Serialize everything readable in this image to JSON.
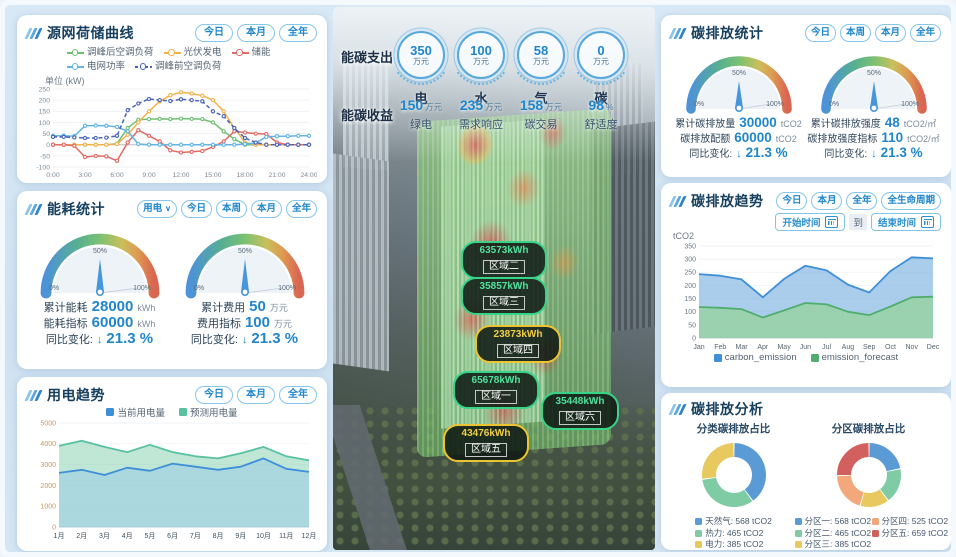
{
  "theme": {
    "accent": "#2f86cd",
    "number_blue": "#1f86cc",
    "panel_bg": "#ffffff",
    "badge_green": "#37d488",
    "badge_yellow": "#ecc432"
  },
  "left": {
    "source_grid": {
      "title": "源网荷储曲线",
      "filters": [
        "今日",
        "本月",
        "全年"
      ],
      "unit": "单位 (kW)"
    },
    "energy_stats": {
      "title": "能耗统计",
      "type_select": "用电",
      "filters": [
        "今日",
        "本周",
        "本月",
        "全年"
      ],
      "gauges": [
        {
          "rows": [
            {
              "label": "累计能耗",
              "value": "28000",
              "unit": "kWh"
            },
            {
              "label": "能耗指标",
              "value": "60000",
              "unit": "kWh"
            }
          ],
          "yoy_label": "同比变化:",
          "yoy_value": "21.3 %"
        },
        {
          "rows": [
            {
              "label": "累计费用",
              "value": "50",
              "unit": "万元"
            },
            {
              "label": "费用指标",
              "value": "100",
              "unit": "万元"
            }
          ],
          "yoy_label": "同比变化:",
          "yoy_value": "21.3 %"
        }
      ]
    },
    "electricity_trend": {
      "title": "用电趋势",
      "filters": [
        "今日",
        "本月",
        "全年"
      ]
    }
  },
  "center": {
    "expense_label": "能碳支出",
    "income_label": "能碳收益",
    "expense_items": [
      {
        "value": "350",
        "unit": "万元",
        "name": "电"
      },
      {
        "value": "100",
        "unit": "万元",
        "name": "水"
      },
      {
        "value": "58",
        "unit": "万元",
        "name": "气"
      },
      {
        "value": "0",
        "unit": "万元",
        "name": "碳"
      }
    ],
    "income_items": [
      {
        "value": "150",
        "unit": "万元",
        "name": "绿电"
      },
      {
        "value": "235",
        "unit": "万元",
        "name": "需求响应"
      },
      {
        "value": "158",
        "unit": "万元",
        "name": "碳交易"
      },
      {
        "value": "98",
        "unit": "%",
        "name": "舒适度"
      }
    ],
    "zone_badges": [
      {
        "value": "63573kWh",
        "name": "区域二"
      },
      {
        "value": "35857kWh",
        "name": "区域三"
      },
      {
        "value": "23873kWh",
        "name": "区域四"
      },
      {
        "value": "65678kWh",
        "name": "区域一"
      },
      {
        "value": "35448kWh",
        "name": "区域六"
      },
      {
        "value": "43476kWh",
        "name": "区域五"
      }
    ]
  },
  "right": {
    "carbon_stats": {
      "title": "碳排放统计",
      "filters": [
        "今日",
        "本周",
        "本月",
        "全年"
      ],
      "gauges": [
        {
          "rows": [
            {
              "label": "累计碳排放量",
              "value": "30000",
              "unit": "tCO2"
            },
            {
              "label": "碳排放配额",
              "value": "60000",
              "unit": "tCO2"
            }
          ],
          "yoy_label": "同比变化:",
          "yoy_value": "21.3 %"
        },
        {
          "rows": [
            {
              "label": "累计碳排放强度",
              "value": "48",
              "unit": "tCO2/㎡"
            },
            {
              "label": "碳排放强度指标",
              "value": "110",
              "unit": "tCO2/㎡"
            }
          ],
          "yoy_label": "同比变化:",
          "yoy_value": "21.3 %"
        }
      ]
    },
    "carbon_trend": {
      "title": "碳排放趋势",
      "filters": [
        "今日",
        "本月",
        "全年",
        "全生命周期"
      ],
      "date_start_placeholder": "开始时间",
      "date_to": "到",
      "date_end_placeholder": "结束时间"
    },
    "carbon_analysis": {
      "title": "碳排放分析",
      "donut_titles": [
        "分类碳排放占比",
        "分区碳排放占比"
      ]
    }
  },
  "chart_data": [
    {
      "id": "source_grid_curve",
      "type": "line",
      "title": "源网荷储曲线",
      "ylabel": "kW",
      "ylim": [
        -100,
        250
      ],
      "yticks": [
        250,
        200,
        150,
        100,
        50,
        0,
        -50,
        -100
      ],
      "xticks": [
        "0:00",
        "3:00",
        "6:00",
        "9:00",
        "12:00",
        "15:00",
        "18:00",
        "21:00",
        "24:00"
      ],
      "series": [
        {
          "name": "调峰后空调负荷",
          "color": "#6fbf73",
          "values": [
            0,
            0,
            0,
            0,
            0,
            0,
            5,
            75,
            112,
            115,
            116,
            115,
            117,
            116,
            115,
            100,
            60,
            25,
            0,
            0,
            0,
            0,
            0,
            0,
            0
          ]
        },
        {
          "name": "光伏发电",
          "color": "#f3b24c",
          "values": [
            0,
            0,
            0,
            0,
            0,
            0,
            3,
            45,
            100,
            150,
            195,
            222,
            235,
            230,
            220,
            200,
            150,
            75,
            10,
            0,
            0,
            0,
            0,
            0,
            0
          ]
        },
        {
          "name": "储能",
          "color": "#e36a64",
          "values": [
            0,
            0,
            -5,
            -55,
            -50,
            -52,
            -72,
            10,
            65,
            40,
            15,
            -25,
            -35,
            -32,
            -28,
            -10,
            15,
            60,
            55,
            50,
            48,
            10,
            0,
            0,
            0
          ]
        },
        {
          "name": "电网功率",
          "color": "#62b4e4",
          "values": [
            40,
            40,
            38,
            85,
            86,
            85,
            80,
            60,
            3,
            0,
            0,
            0,
            0,
            0,
            0,
            0,
            0,
            0,
            3,
            8,
            35,
            38,
            38,
            40,
            40
          ]
        },
        {
          "name": "调峰前空调负荷",
          "color": "#4862b8",
          "dashed": true,
          "values": [
            35,
            35,
            33,
            30,
            30,
            32,
            40,
            155,
            185,
            205,
            200,
            196,
            204,
            200,
            195,
            150,
            128,
            75,
            30,
            10,
            0,
            0,
            0,
            0,
            0
          ]
        }
      ]
    },
    {
      "id": "electricity_trend",
      "type": "area",
      "title": "用电趋势",
      "categories": [
        "1月",
        "2月",
        "3月",
        "4月",
        "5月",
        "6月",
        "7月",
        "8月",
        "9月",
        "10月",
        "11月",
        "12月"
      ],
      "ylim": [
        0,
        5000
      ],
      "yticks": [
        0,
        1000,
        2000,
        3000,
        4000,
        5000
      ],
      "ml": 32,
      "tick_color": "#c9975f",
      "xtick_color": "#3d4f60",
      "series": [
        {
          "name": "当前用电量",
          "color": "#3f8fd8",
          "fill": "rgba(140,195,235,0.42)",
          "values": [
            2600,
            2750,
            2500,
            2850,
            2700,
            3050,
            2900,
            2750,
            2900,
            3300,
            2800,
            2650
          ]
        },
        {
          "name": "预测用电量",
          "color": "#58c1a0",
          "fill": "rgba(150,215,185,0.60)",
          "values": [
            3900,
            4150,
            3850,
            3600,
            3950,
            3600,
            3400,
            3300,
            3550,
            3850,
            3400,
            3200
          ]
        }
      ]
    },
    {
      "id": "carbon_trend",
      "type": "area",
      "title": "碳排放趋势",
      "ylabel": "tCO2",
      "categories": [
        "Jan",
        "Feb",
        "Mar",
        "Apr",
        "May",
        "Jun",
        "Jul",
        "Aug",
        "Sep",
        "Oct",
        "Nov",
        "Dec"
      ],
      "ylim": [
        0,
        350
      ],
      "yticks": [
        0,
        50,
        100,
        150,
        200,
        250,
        300,
        350
      ],
      "ml": 28,
      "tick_color": "#6b7a88",
      "xtick_color": "#55656f",
      "series": [
        {
          "name": "carbon_emission",
          "color": "#3f8fd8",
          "fill": "rgba(120,175,225,0.62)",
          "values": [
            243,
            237,
            223,
            155,
            225,
            275,
            257,
            203,
            173,
            255,
            307,
            303
          ]
        },
        {
          "name": "emission_forecast",
          "color": "#4fae6e",
          "fill": "rgba(150,210,160,0.80)",
          "values": [
            118,
            115,
            110,
            78,
            105,
            133,
            128,
            100,
            87,
            120,
            155,
            157
          ]
        }
      ]
    },
    {
      "id": "gauge",
      "type": "gauge",
      "percent": 50,
      "ticks": [
        "0%",
        "50%",
        "100%"
      ]
    },
    {
      "id": "category_donut",
      "type": "pie",
      "title": "分类碳排放占比",
      "unit": "tCO2",
      "labels": [
        "天然气",
        "热力",
        "电力"
      ],
      "values": [
        568,
        465,
        385
      ],
      "colors": [
        "#5b9bd5",
        "#7fcba4",
        "#e7c95f"
      ]
    },
    {
      "id": "zone_donut",
      "type": "pie",
      "title": "分区碳排放占比",
      "unit": "tCO2",
      "labels": [
        "分区一",
        "分区二",
        "分区三",
        "分区四",
        "分区五"
      ],
      "values": [
        568,
        465,
        385,
        525,
        659
      ],
      "colors": [
        "#5b9bd5",
        "#7fcba4",
        "#e7c95f",
        "#f2a87a",
        "#d2605e"
      ]
    }
  ]
}
